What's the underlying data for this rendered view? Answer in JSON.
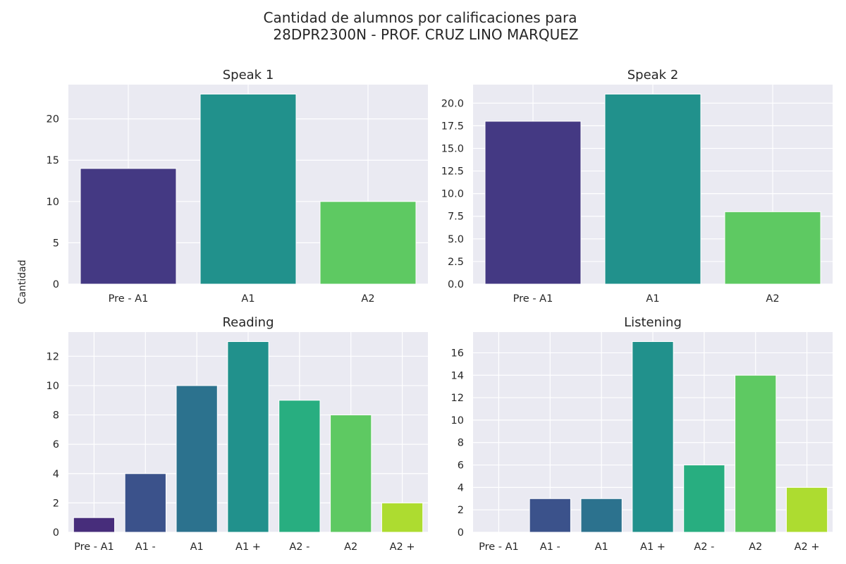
{
  "figure": {
    "title_line1": "Cantidad de alumnos por calificaciones para",
    "title_line2": "28DPR2300N - PROF. CRUZ LINO MARQUEZ",
    "shared_ylabel": "Cantidad"
  },
  "colors": {
    "background": "#eaeaf2",
    "grid": "#ffffff"
  },
  "chart_data": [
    {
      "type": "bar",
      "title": "Speak 1",
      "categories": [
        "Pre - A1",
        "A1",
        "A2"
      ],
      "values": [
        14,
        23,
        10
      ],
      "colors": [
        "#443983",
        "#21918c",
        "#5ec962"
      ],
      "ylim": [
        0,
        24.15
      ],
      "yticks": [
        0,
        5,
        10,
        15,
        20
      ],
      "ytick_labels": [
        "0",
        "5",
        "10",
        "15",
        "20"
      ],
      "grid": true
    },
    {
      "type": "bar",
      "title": "Speak 2",
      "categories": [
        "Pre - A1",
        "A1",
        "A2"
      ],
      "values": [
        18,
        21,
        8
      ],
      "colors": [
        "#443983",
        "#21918c",
        "#5ec962"
      ],
      "ylim": [
        0,
        22.05
      ],
      "yticks": [
        0,
        2.5,
        5,
        7.5,
        10,
        12.5,
        15,
        17.5,
        20
      ],
      "ytick_labels": [
        "0.0",
        "2.5",
        "5.0",
        "7.5",
        "10.0",
        "12.5",
        "15.0",
        "17.5",
        "20.0"
      ],
      "grid": true
    },
    {
      "type": "bar",
      "title": "Reading",
      "categories": [
        "Pre - A1",
        "A1 -",
        "A1",
        "A1 +",
        "A2 -",
        "A2",
        "A2 +"
      ],
      "values": [
        1,
        4,
        10,
        13,
        9,
        8,
        2
      ],
      "colors": [
        "#472d7b",
        "#3b528b",
        "#2c728e",
        "#21918c",
        "#28ae80",
        "#5ec962",
        "#addc30"
      ],
      "ylim": [
        0,
        13.65
      ],
      "yticks": [
        0,
        2,
        4,
        6,
        8,
        10,
        12
      ],
      "ytick_labels": [
        "0",
        "2",
        "4",
        "6",
        "8",
        "10",
        "12"
      ],
      "grid": true
    },
    {
      "type": "bar",
      "title": "Listening",
      "categories": [
        "Pre - A1",
        "A1 -",
        "A1",
        "A1 +",
        "A2 -",
        "A2",
        "A2 +"
      ],
      "values": [
        0,
        3,
        3,
        17,
        6,
        14,
        4
      ],
      "colors": [
        "#472d7b",
        "#3b528b",
        "#2c728e",
        "#21918c",
        "#28ae80",
        "#5ec962",
        "#addc30"
      ],
      "ylim": [
        0,
        17.85
      ],
      "yticks": [
        0,
        2,
        4,
        6,
        8,
        10,
        12,
        14,
        16
      ],
      "ytick_labels": [
        "0",
        "2",
        "4",
        "6",
        "8",
        "10",
        "12",
        "14",
        "16"
      ],
      "grid": true
    }
  ]
}
